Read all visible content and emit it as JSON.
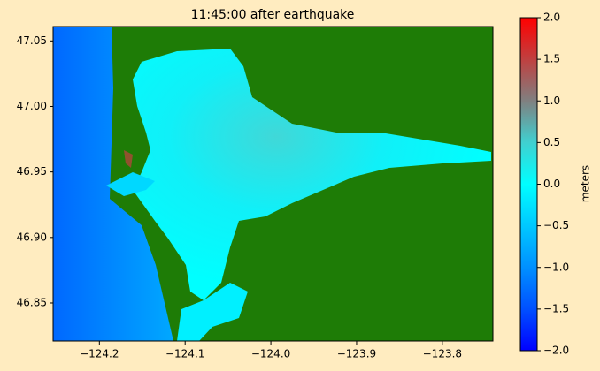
{
  "chart_data": {
    "type": "heatmap",
    "title": "11:45:00 after earthquake",
    "colorbar_label": "meters",
    "xlim": [
      -124.254,
      -123.741
    ],
    "ylim": [
      46.821,
      47.061
    ],
    "xticks": [
      {
        "value": -124.2,
        "label": "−124.2"
      },
      {
        "value": -124.1,
        "label": "−124.1"
      },
      {
        "value": -124.0,
        "label": "−124.0"
      },
      {
        "value": -123.9,
        "label": "−123.9"
      },
      {
        "value": -123.8,
        "label": "−123.8"
      }
    ],
    "yticks": [
      46.85,
      {
        "value": 46.9,
        "label": "46.90"
      },
      46.95,
      {
        "value": 47.0,
        "label": "47.00"
      },
      47.05
    ],
    "clim": [
      -2,
      2
    ],
    "cticks": [
      {
        "value": -2,
        "label": "−2.0"
      },
      {
        "value": -1.5,
        "label": "−1.5"
      },
      {
        "value": -1,
        "label": "−1.0"
      },
      {
        "value": -0.5,
        "label": "−0.5"
      },
      {
        "value": 0,
        "label": "0.0"
      },
      0.5,
      {
        "value": 1,
        "label": "1.0"
      },
      1.5,
      {
        "value": 2,
        "label": "2.0"
      }
    ],
    "colormap": [
      "#0000ff",
      "#0050ff",
      "#0090ff",
      "#00c8ff",
      "#00ffff",
      "#40d0d0",
      "#808080",
      "#c04040",
      "#ff0000"
    ]
  }
}
